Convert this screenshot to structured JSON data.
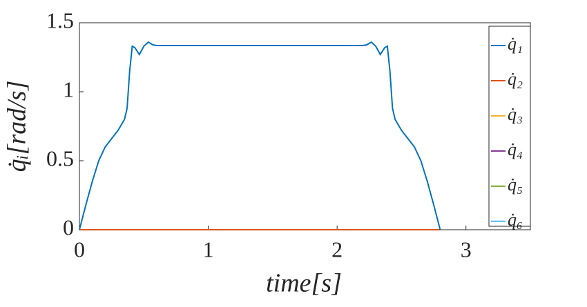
{
  "chart_data": {
    "type": "line",
    "x_label": "time[s]",
    "y_label": "q̇ᵢ[rad/s]",
    "x": [
      0,
      0.05,
      0.1,
      0.15,
      0.2,
      0.25,
      0.3,
      0.35,
      0.37,
      0.39,
      0.41,
      0.43,
      0.465,
      0.5,
      0.535,
      0.57,
      0.6,
      2.2,
      2.23,
      2.265,
      2.3,
      2.335,
      2.37,
      2.39,
      2.41,
      2.43,
      2.45,
      2.5,
      2.55,
      2.6,
      2.65,
      2.7,
      2.75,
      2.8
    ],
    "series": [
      {
        "name": "q̇₁",
        "color": "#0072BD",
        "values": [
          0,
          0.18,
          0.35,
          0.5,
          0.6,
          0.66,
          0.72,
          0.8,
          0.88,
          1.15,
          1.33,
          1.32,
          1.27,
          1.33,
          1.36,
          1.34,
          1.335,
          1.335,
          1.34,
          1.36,
          1.33,
          1.27,
          1.32,
          1.33,
          1.15,
          0.88,
          0.8,
          0.72,
          0.66,
          0.6,
          0.5,
          0.35,
          0.18,
          0
        ]
      },
      {
        "name": "q̇₂",
        "color": "#D95319",
        "values": [
          0,
          0,
          0,
          0,
          0,
          0,
          0,
          0,
          0,
          0,
          0,
          0,
          0,
          0,
          0,
          0,
          0,
          0,
          0,
          0,
          0,
          0,
          0,
          0,
          0,
          0,
          0,
          0,
          0,
          0,
          0,
          0,
          0,
          0
        ]
      },
      {
        "name": "q̇₃",
        "color": "#EDB120",
        "values": [
          0,
          0,
          0,
          0,
          0,
          0,
          0,
          0,
          0,
          0,
          0,
          0,
          0,
          0,
          0,
          0,
          0,
          0,
          0,
          0,
          0,
          0,
          0,
          0,
          0,
          0,
          0,
          0,
          0,
          0,
          0,
          0,
          0,
          0
        ]
      },
      {
        "name": "q̇₄",
        "color": "#7E2F8E",
        "values": [
          0,
          0,
          0,
          0,
          0,
          0,
          0,
          0,
          0,
          0,
          0,
          0,
          0,
          0,
          0,
          0,
          0,
          0,
          0,
          0,
          0,
          0,
          0,
          0,
          0,
          0,
          0,
          0,
          0,
          0,
          0,
          0,
          0,
          0
        ]
      },
      {
        "name": "q̇₅",
        "color": "#77AC30",
        "values": [
          0,
          0,
          0,
          0,
          0,
          0,
          0,
          0,
          0,
          0,
          0,
          0,
          0,
          0,
          0,
          0,
          0,
          0,
          0,
          0,
          0,
          0,
          0,
          0,
          0,
          0,
          0,
          0,
          0,
          0,
          0,
          0,
          0,
          0
        ]
      },
      {
        "name": "q̇₆",
        "color": "#4DBEEE",
        "values": [
          0,
          0,
          0,
          0,
          0,
          0,
          0,
          0,
          0,
          0,
          0,
          0,
          0,
          0,
          0,
          0,
          0,
          0,
          0,
          0,
          0,
          0,
          0,
          0,
          0,
          0,
          0,
          0,
          0,
          0,
          0,
          0,
          0,
          0
        ]
      }
    ],
    "xlim": [
      0,
      3.5
    ],
    "ylim": [
      0,
      1.5
    ],
    "xticks": [
      0,
      1,
      2,
      3
    ],
    "yticks": [
      0,
      0.5,
      1,
      1.5
    ],
    "grid": false,
    "legend": "northeast"
  }
}
